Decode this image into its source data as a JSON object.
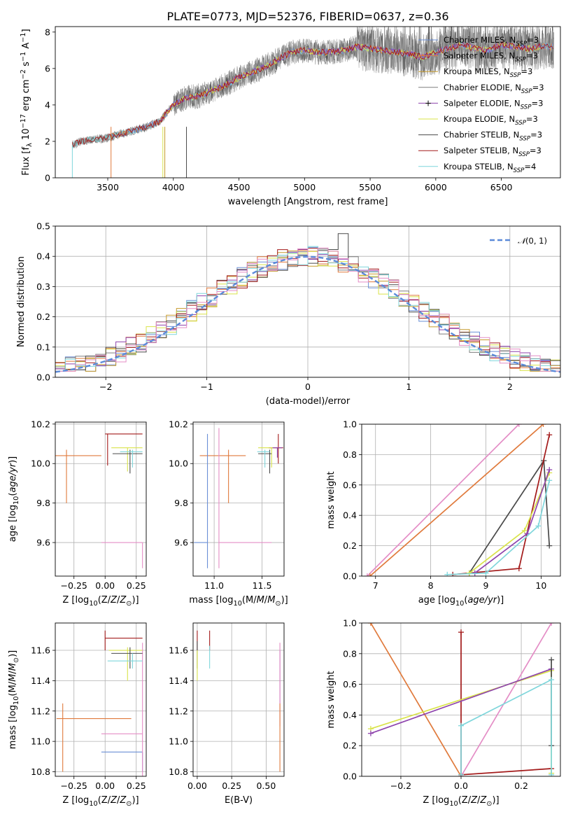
{
  "figure_title": "PLATE=0773, MJD=52376, FIBERID=0637, z=0.36",
  "colors": {
    "chabrier_miles": "#6a8fd6",
    "salpeter_miles": "#e07a3c",
    "kroupa_miles": "#c69a2a",
    "chabrier_elodie": "#7f7f7f",
    "salpeter_elodie": "#8e44ad",
    "kroupa_elodie": "#d9e34a",
    "chabrier_stelib": "#4a4a4a",
    "salpeter_stelib": "#a31a1a",
    "kroupa_stelib": "#7fd6db",
    "kroupa_elodie_alt": "#b7d94a",
    "pink": "#e48dc6",
    "gauss": "#5b8ad9"
  },
  "chart_data": [
    {
      "id": "spectrum",
      "type": "line",
      "title": "PLATE=0773, MJD=52376, FIBERID=0637, z=0.36",
      "xlabel": "wavelength [Angstrom, rest frame]",
      "ylabel": "Flux [f_λ 10^-17 erg cm^-2 s^-1 A^-1]",
      "xlim": [
        3100,
        6950
      ],
      "ylim": [
        0,
        8.3
      ],
      "xticks": [
        3500,
        4000,
        4500,
        5000,
        5500,
        6000,
        6500
      ],
      "yticks": [
        0,
        2,
        4,
        6,
        8
      ],
      "grid": false,
      "legend_position": "top-right",
      "legend": [
        "Chabrier MILES, N_SSP=3",
        "Salpeter MILES, N_SSP=3",
        "Kroupa MILES, N_SSP=3",
        "Chabrier ELODIE, N_SSP=3",
        "Salpeter ELODIE, N_SSP=3",
        "Kroupa ELODIE, N_SSP=3",
        "Chabrier STELIB, N_SSP=3",
        "Salpeter STELIB, N_SSP=3",
        "Kroupa STELIB, N_SSP=4"
      ],
      "continuum": {
        "x": [
          3230,
          3300,
          3400,
          3500,
          3600,
          3700,
          3800,
          3900,
          3950,
          4000,
          4100,
          4200,
          4300,
          4400,
          4500,
          4600,
          4700,
          4800,
          4900,
          5000,
          5100,
          5200,
          5300,
          5400,
          5500,
          5600,
          5700,
          5800,
          5900,
          6000,
          6100,
          6200,
          6300,
          6400,
          6500,
          6600,
          6700,
          6800
        ],
        "y": [
          1.8,
          2.0,
          2.1,
          2.2,
          2.4,
          2.6,
          2.8,
          3.1,
          3.6,
          4.0,
          4.4,
          4.5,
          4.8,
          5.1,
          5.5,
          5.8,
          6.1,
          6.5,
          6.9,
          7.0,
          6.9,
          6.9,
          7.0,
          7.2,
          7.1,
          7.0,
          6.9,
          6.8,
          6.6,
          6.9,
          7.1,
          7.3,
          7.1,
          7.0,
          7.3,
          7.2,
          7.1,
          7.2
        ]
      },
      "model_series_ranges": {
        "MILES": [
          3530,
          6900
        ],
        "ELODIE": [
          3900,
          6800
        ],
        "STELIB": [
          3230,
          6900
        ]
      }
    },
    {
      "id": "residual-histogram",
      "type": "bar",
      "xlabel": "(data-model)/error",
      "ylabel": "Normed distribution",
      "xlim": [
        -2.5,
        2.5
      ],
      "ylim": [
        0,
        0.5
      ],
      "xticks": [
        -2,
        -1,
        0,
        1,
        2
      ],
      "yticks": [
        0.0,
        0.1,
        0.2,
        0.3,
        0.4,
        0.5
      ],
      "grid": true,
      "legend_position": "top-right",
      "legend": [
        "N(0,1)"
      ],
      "gaussian": {
        "mu": 0,
        "sigma": 1
      },
      "bin_width": 0.1,
      "bins_start": -2.5
    },
    {
      "id": "age-vs-Z",
      "type": "scatter",
      "xlabel": "Z [log10(Z/Z⊙)]",
      "ylabel": "age [log10(age/yr)]",
      "xlim": [
        -0.4,
        0.33
      ],
      "ylim": [
        9.43,
        10.21
      ],
      "xticks": [
        -0.25,
        0.0,
        0.25
      ],
      "yticks": [
        9.6,
        9.8,
        10.0,
        10.2
      ],
      "grid": true,
      "points": [
        {
          "series": "salpeter_miles",
          "x": -0.31,
          "y": 10.04,
          "xerr": [
            0.44,
            0.28
          ],
          "yerr": [
            0.24,
            0.03
          ]
        },
        {
          "series": "salpeter_stelib",
          "x": 0.02,
          "y": 10.15,
          "xerr": [
            0.02,
            0.28
          ],
          "yerr": [
            0.16,
            0.0
          ]
        },
        {
          "series": "kroupa_elodie",
          "x": 0.18,
          "y": 10.08,
          "xerr": [
            0.13,
            0.12
          ],
          "yerr": [
            0.12,
            0.0
          ]
        },
        {
          "series": "chabrier_stelib",
          "x": 0.2,
          "y": 10.05,
          "xerr": [
            0.14,
            0.1
          ],
          "yerr": [
            0.1,
            0.02
          ]
        },
        {
          "series": "kroupa_stelib",
          "x": 0.22,
          "y": 10.06,
          "xerr": [
            0.1,
            0.08
          ],
          "yerr": [
            0.08,
            0.01
          ]
        },
        {
          "series": "pink",
          "x": 0.3,
          "y": 9.6,
          "xerr": [
            0.33,
            0.0
          ],
          "yerr": [
            0.13,
            0.0
          ]
        },
        {
          "series": "chabrier_miles",
          "x": 0.3,
          "y": 9.6,
          "xerr": [
            0.0,
            0.0
          ],
          "yerr": [
            0.0,
            0.0
          ]
        }
      ]
    },
    {
      "id": "age-vs-mass",
      "type": "scatter",
      "xlabel": "mass [log10(M/M⊙)]",
      "ylabel": "",
      "xlim": [
        10.78,
        11.73
      ],
      "ylim": [
        9.43,
        10.21
      ],
      "xticks": [
        11.0,
        11.5
      ],
      "yticks": [
        9.6,
        9.8,
        10.0,
        10.2
      ],
      "grid": true,
      "points": [
        {
          "series": "salpeter_miles",
          "x": 11.15,
          "y": 10.04,
          "xerr": [
            0.3,
            0.18
          ],
          "yerr": [
            0.24,
            0.03
          ]
        },
        {
          "series": "chabrier_miles",
          "x": 10.93,
          "y": 9.6,
          "xerr": [
            0.14,
            0.0
          ],
          "yerr": [
            0.13,
            0.55
          ]
        },
        {
          "series": "pink",
          "x": 11.05,
          "y": 9.6,
          "xerr": [
            0.0,
            0.55
          ],
          "yerr": [
            0.13,
            0.58
          ]
        },
        {
          "series": "salpeter_stelib",
          "x": 11.67,
          "y": 10.08,
          "xerr": [
            0.1,
            0.05
          ],
          "yerr": [
            0.08,
            0.07
          ]
        },
        {
          "series": "kroupa_elodie",
          "x": 11.6,
          "y": 10.08,
          "xerr": [
            0.14,
            0.03
          ],
          "yerr": [
            0.1,
            0.0
          ]
        },
        {
          "series": "chabrier_stelib",
          "x": 11.58,
          "y": 10.05,
          "xerr": [
            0.12,
            0.02
          ],
          "yerr": [
            0.1,
            0.02
          ]
        },
        {
          "series": "kroupa_stelib",
          "x": 11.53,
          "y": 10.06,
          "xerr": [
            0.08,
            0.05
          ],
          "yerr": [
            0.08,
            0.01
          ]
        },
        {
          "series": "salpeter_elodie",
          "x": 11.66,
          "y": 10.08,
          "xerr": [
            0.05,
            0.05
          ],
          "yerr": [
            0.05,
            0.0
          ]
        }
      ]
    },
    {
      "id": "mass-weight-vs-age",
      "type": "line",
      "xlabel": "age [log10(age/yr)]",
      "ylabel": "mass weight",
      "xlim": [
        6.75,
        10.35
      ],
      "ylim": [
        0,
        1.0
      ],
      "xticks": [
        7,
        8,
        9,
        10
      ],
      "yticks": [
        0.0,
        0.2,
        0.4,
        0.6,
        0.8,
        1.0
      ],
      "grid": true,
      "series": [
        {
          "name": "",
          "color": "pink",
          "x": [
            6.85,
            9.6
          ],
          "y": [
            0.0,
            1.0
          ]
        },
        {
          "name": "",
          "color": "salpeter_miles",
          "x": [
            6.9,
            10.04
          ],
          "y": [
            0.0,
            1.0
          ]
        },
        {
          "name": "",
          "color": "chabrier_stelib",
          "x": [
            8.7,
            10.05,
            10.15
          ],
          "y": [
            0.02,
            0.76,
            0.2
          ]
        },
        {
          "name": "",
          "color": "salpeter_stelib",
          "x": [
            8.4,
            9.6,
            10.15
          ],
          "y": [
            0.01,
            0.05,
            0.93
          ]
        },
        {
          "name": "",
          "color": "kroupa_elodie",
          "x": [
            8.7,
            9.7,
            10.15
          ],
          "y": [
            0.02,
            0.3,
            0.68
          ]
        },
        {
          "name": "",
          "color": "salpeter_elodie",
          "x": [
            8.8,
            9.75,
            10.15
          ],
          "y": [
            0.02,
            0.28,
            0.7
          ]
        },
        {
          "name": "",
          "color": "kroupa_stelib",
          "x": [
            8.3,
            9.0,
            9.95,
            10.15
          ],
          "y": [
            0.01,
            0.02,
            0.33,
            0.63
          ]
        }
      ]
    },
    {
      "id": "mass-vs-Z",
      "type": "scatter",
      "xlabel": "Z [log10(Z/Z⊙)]",
      "ylabel": "mass [log10(M/M⊙)]",
      "xlim": [
        -0.4,
        0.33
      ],
      "ylim": [
        10.77,
        11.78
      ],
      "xticks": [
        -0.25,
        0.0,
        0.25
      ],
      "yticks": [
        10.8,
        11.0,
        11.2,
        11.4,
        11.6
      ],
      "grid": true,
      "points": [
        {
          "series": "salpeter_miles",
          "x": -0.34,
          "y": 11.15,
          "xerr": [
            0.05,
            0.55
          ],
          "yerr": [
            0.35,
            0.1
          ]
        },
        {
          "series": "chabrier_miles",
          "x": 0.3,
          "y": 10.93,
          "xerr": [
            0.33,
            0.0
          ],
          "yerr": [
            0.13,
            0.0
          ]
        },
        {
          "series": "pink",
          "x": 0.3,
          "y": 11.05,
          "xerr": [
            0.33,
            0.0
          ],
          "yerr": [
            0.3,
            0.6
          ]
        },
        {
          "series": "salpeter_stelib",
          "x": 0.0,
          "y": 11.68,
          "xerr": [
            0.0,
            0.3
          ],
          "yerr": [
            0.08,
            0.05
          ]
        },
        {
          "series": "kroupa_elodie",
          "x": 0.18,
          "y": 11.6,
          "xerr": [
            0.15,
            0.12
          ],
          "yerr": [
            0.2,
            0.02
          ]
        },
        {
          "series": "chabrier_stelib",
          "x": 0.2,
          "y": 11.58,
          "xerr": [
            0.15,
            0.1
          ],
          "yerr": [
            0.1,
            0.04
          ]
        },
        {
          "series": "kroupa_stelib",
          "x": 0.22,
          "y": 11.53,
          "xerr": [
            0.2,
            0.08
          ],
          "yerr": [
            0.05,
            0.05
          ]
        }
      ]
    },
    {
      "id": "mass-vs-ebv",
      "type": "scatter",
      "xlabel": "E(B-V)",
      "ylabel": "",
      "xlim": [
        -0.03,
        0.63
      ],
      "ylim": [
        10.77,
        11.78
      ],
      "xticks": [
        0.0,
        0.25,
        0.5
      ],
      "yticks": [
        10.8,
        11.0,
        11.2,
        11.4,
        11.6
      ],
      "grid": true,
      "points": [
        {
          "series": "salpeter_stelib",
          "x": 0.0,
          "y": 11.68,
          "xerr": [
            0,
            0
          ],
          "yerr": [
            0.08,
            0.05
          ]
        },
        {
          "series": "chabrier_stelib",
          "x": 0.0,
          "y": 11.58,
          "xerr": [
            0,
            0
          ],
          "yerr": [
            0.1,
            0.08
          ]
        },
        {
          "series": "kroupa_elodie",
          "x": 0.0,
          "y": 11.55,
          "xerr": [
            0,
            0
          ],
          "yerr": [
            0.15,
            0.05
          ]
        },
        {
          "series": "salpeter_stelib",
          "x": 0.09,
          "y": 11.68,
          "xerr": [
            0,
            0
          ],
          "yerr": [
            0.08,
            0.05
          ]
        },
        {
          "series": "kroupa_stelib",
          "x": 0.09,
          "y": 11.58,
          "xerr": [
            0,
            0
          ],
          "yerr": [
            0.1,
            0.05
          ]
        },
        {
          "series": "salpeter_elodie",
          "x": 0.6,
          "y": 11.45,
          "xerr": [
            0,
            0
          ],
          "yerr": [
            0.2,
            0.15
          ]
        },
        {
          "series": "pink",
          "x": 0.6,
          "y": 11.3,
          "xerr": [
            0,
            0
          ],
          "yerr": [
            0.2,
            0.35
          ]
        },
        {
          "series": "salpeter_miles",
          "x": 0.6,
          "y": 11.0,
          "xerr": [
            0,
            0
          ],
          "yerr": [
            0.2,
            0.25
          ]
        }
      ]
    },
    {
      "id": "mass-weight-vs-Z",
      "type": "line",
      "xlabel": "Z [log10(Z/Z⊙)]",
      "ylabel": "mass weight",
      "xlim": [
        -0.33,
        0.33
      ],
      "ylim": [
        0,
        1.0
      ],
      "xticks": [
        -0.2,
        0.0,
        0.2
      ],
      "yticks": [
        0.0,
        0.2,
        0.4,
        0.6,
        0.8,
        1.0
      ],
      "grid": true,
      "series": [
        {
          "name": "",
          "color": "salpeter_miles",
          "x": [
            -0.3,
            0.0
          ],
          "y": [
            1.0,
            0.0
          ]
        },
        {
          "name": "",
          "color": "pink",
          "x": [
            0.0,
            0.3
          ],
          "y": [
            0.0,
            1.0
          ]
        },
        {
          "name": "",
          "color": "salpeter_stelib",
          "x": [
            0.0,
            0.0,
            0.3
          ],
          "y": [
            0.94,
            0.01,
            0.05
          ]
        },
        {
          "name": "",
          "color": "kroupa_elodie",
          "x": [
            -0.3,
            0.3,
            0.3
          ],
          "y": [
            0.31,
            0.69,
            0.02
          ]
        },
        {
          "name": "",
          "color": "salpeter_elodie",
          "x": [
            -0.3,
            0.3
          ],
          "y": [
            0.28,
            0.7
          ]
        },
        {
          "name": "",
          "color": "chabrier_stelib",
          "x": [
            0.3,
            0.3
          ],
          "y": [
            0.76,
            0.2
          ]
        },
        {
          "name": "",
          "color": "kroupa_stelib",
          "x": [
            0.0,
            0.0,
            0.3,
            0.3
          ],
          "y": [
            0.01,
            0.33,
            0.63,
            0.01
          ]
        }
      ]
    }
  ]
}
